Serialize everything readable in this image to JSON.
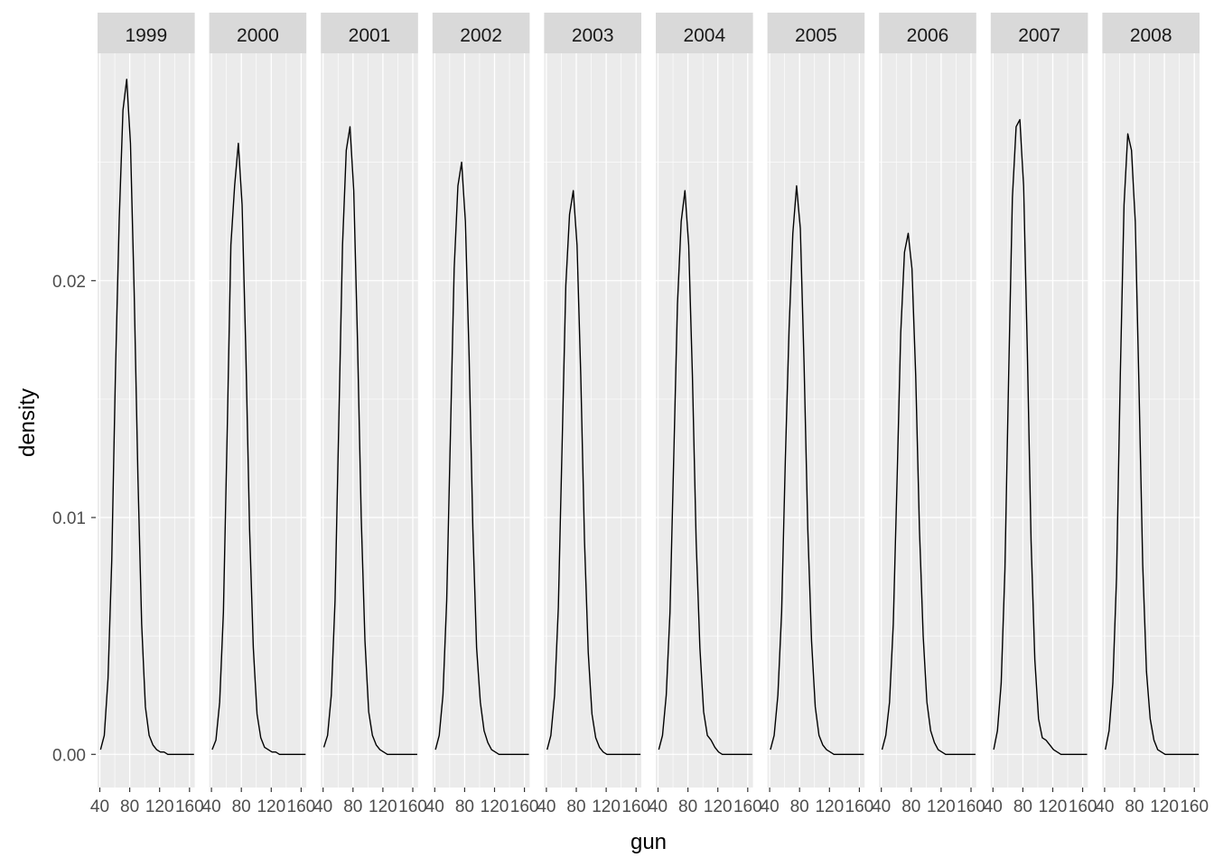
{
  "chart_data": {
    "type": "line",
    "subtype": "faceted-density",
    "xlabel": "gun",
    "ylabel": "density",
    "xlim": [
      37,
      167
    ],
    "ylim": [
      -0.0014,
      0.0296
    ],
    "x_ticks": [
      40,
      80,
      120,
      160
    ],
    "x_tick_labels": [
      "40",
      "80",
      "120",
      "160"
    ],
    "y_ticks": [
      0.0,
      0.01,
      0.02
    ],
    "y_tick_labels": [
      "0.00",
      "0.01",
      "0.02"
    ],
    "grid": true,
    "panel_background": "#ebebeb",
    "strip_background": "#d9d9d9",
    "grid_color": "#ffffff",
    "line_color": "#000000",
    "facets": [
      {
        "strip": "1999",
        "x": [
          41,
          46,
          51,
          56,
          61,
          66,
          71,
          76,
          81,
          86,
          91,
          96,
          101,
          106,
          111,
          116,
          121,
          126,
          131,
          136,
          141,
          146,
          151,
          156,
          161,
          166
        ],
        "y": [
          0.0002,
          0.0008,
          0.0032,
          0.0082,
          0.0162,
          0.0226,
          0.0272,
          0.0285,
          0.0258,
          0.0195,
          0.0117,
          0.0055,
          0.002,
          0.0008,
          0.0004,
          0.0002,
          0.0001,
          0.0001,
          0.0,
          0.0,
          0.0,
          0.0,
          0.0,
          0.0,
          0.0,
          0.0
        ]
      },
      {
        "strip": "2000",
        "x": [
          41,
          46,
          51,
          56,
          61,
          66,
          71,
          76,
          81,
          86,
          91,
          96,
          101,
          106,
          111,
          116,
          121,
          126,
          131,
          136,
          141,
          146,
          151,
          156,
          161,
          166
        ],
        "y": [
          0.0002,
          0.0006,
          0.0022,
          0.006,
          0.0135,
          0.0215,
          0.024,
          0.0258,
          0.0232,
          0.017,
          0.0095,
          0.0045,
          0.0017,
          0.0007,
          0.0003,
          0.0002,
          0.0001,
          0.0001,
          0.0,
          0.0,
          0.0,
          0.0,
          0.0,
          0.0,
          0.0,
          0.0
        ]
      },
      {
        "strip": "2001",
        "x": [
          41,
          46,
          51,
          56,
          61,
          66,
          71,
          76,
          81,
          86,
          91,
          96,
          101,
          106,
          111,
          116,
          121,
          126,
          131,
          136,
          141,
          146,
          151,
          156,
          161,
          166
        ],
        "y": [
          0.0003,
          0.0008,
          0.0025,
          0.0065,
          0.014,
          0.0215,
          0.0255,
          0.0265,
          0.0238,
          0.0175,
          0.01,
          0.0048,
          0.0018,
          0.0008,
          0.0004,
          0.0002,
          0.0001,
          0.0,
          0.0,
          0.0,
          0.0,
          0.0,
          0.0,
          0.0,
          0.0,
          0.0
        ]
      },
      {
        "strip": "2002",
        "x": [
          41,
          46,
          51,
          56,
          61,
          66,
          71,
          76,
          81,
          86,
          91,
          96,
          101,
          106,
          111,
          116,
          121,
          126,
          131,
          136,
          141,
          146,
          151,
          156,
          161,
          166
        ],
        "y": [
          0.0002,
          0.0008,
          0.0025,
          0.0065,
          0.0135,
          0.0205,
          0.024,
          0.025,
          0.0225,
          0.0168,
          0.0095,
          0.0045,
          0.0022,
          0.001,
          0.0005,
          0.0002,
          0.0001,
          0.0,
          0.0,
          0.0,
          0.0,
          0.0,
          0.0,
          0.0,
          0.0,
          0.0
        ]
      },
      {
        "strip": "2003",
        "x": [
          41,
          46,
          51,
          56,
          61,
          66,
          71,
          76,
          81,
          86,
          91,
          96,
          101,
          106,
          111,
          116,
          121,
          126,
          131,
          136,
          141,
          146,
          151,
          156,
          161,
          166
        ],
        "y": [
          0.0002,
          0.0008,
          0.0025,
          0.0062,
          0.013,
          0.0198,
          0.0228,
          0.0238,
          0.0215,
          0.016,
          0.009,
          0.0043,
          0.0017,
          0.0007,
          0.0003,
          0.0001,
          0.0,
          0.0,
          0.0,
          0.0,
          0.0,
          0.0,
          0.0,
          0.0,
          0.0,
          0.0
        ]
      },
      {
        "strip": "2004",
        "x": [
          41,
          46,
          51,
          56,
          61,
          66,
          71,
          76,
          81,
          86,
          91,
          96,
          101,
          106,
          111,
          116,
          121,
          126,
          131,
          136,
          141,
          146,
          151,
          156,
          161,
          166
        ],
        "y": [
          0.0002,
          0.0008,
          0.0025,
          0.006,
          0.0125,
          0.019,
          0.0225,
          0.0238,
          0.0215,
          0.016,
          0.009,
          0.0045,
          0.0018,
          0.0008,
          0.0006,
          0.0003,
          0.0001,
          0.0,
          0.0,
          0.0,
          0.0,
          0.0,
          0.0,
          0.0,
          0.0,
          0.0
        ]
      },
      {
        "strip": "2005",
        "x": [
          41,
          46,
          51,
          56,
          61,
          66,
          71,
          76,
          81,
          86,
          91,
          96,
          101,
          106,
          111,
          116,
          121,
          126,
          131,
          136,
          141,
          146,
          151,
          156,
          161,
          166
        ],
        "y": [
          0.0002,
          0.0008,
          0.0025,
          0.006,
          0.0125,
          0.018,
          0.022,
          0.024,
          0.0222,
          0.0165,
          0.0095,
          0.0048,
          0.002,
          0.0008,
          0.0004,
          0.0002,
          0.0001,
          0.0,
          0.0,
          0.0,
          0.0,
          0.0,
          0.0,
          0.0,
          0.0,
          0.0
        ]
      },
      {
        "strip": "2006",
        "x": [
          41,
          46,
          51,
          56,
          61,
          66,
          71,
          76,
          81,
          86,
          91,
          96,
          101,
          106,
          111,
          116,
          121,
          126,
          131,
          136,
          141,
          146,
          151,
          156,
          161,
          166
        ],
        "y": [
          0.0002,
          0.0008,
          0.0022,
          0.0055,
          0.0115,
          0.0178,
          0.0212,
          0.022,
          0.0205,
          0.016,
          0.0095,
          0.005,
          0.0022,
          0.001,
          0.0005,
          0.0002,
          0.0001,
          0.0,
          0.0,
          0.0,
          0.0,
          0.0,
          0.0,
          0.0,
          0.0,
          0.0
        ]
      },
      {
        "strip": "2007",
        "x": [
          41,
          46,
          51,
          56,
          61,
          66,
          71,
          76,
          81,
          86,
          91,
          96,
          101,
          106,
          111,
          116,
          121,
          126,
          131,
          136,
          141,
          146,
          151,
          156,
          161,
          166
        ],
        "y": [
          0.0002,
          0.001,
          0.003,
          0.0078,
          0.016,
          0.0235,
          0.0265,
          0.0268,
          0.024,
          0.017,
          0.009,
          0.004,
          0.0015,
          0.0007,
          0.0006,
          0.0004,
          0.0002,
          0.0001,
          0.0,
          0.0,
          0.0,
          0.0,
          0.0,
          0.0,
          0.0,
          0.0
        ]
      },
      {
        "strip": "2008",
        "x": [
          41,
          46,
          51,
          56,
          61,
          66,
          71,
          76,
          81,
          86,
          91,
          96,
          101,
          106,
          111,
          116,
          121,
          126,
          131,
          136,
          141,
          146,
          151,
          156,
          161,
          166
        ],
        "y": [
          0.0002,
          0.001,
          0.003,
          0.0075,
          0.016,
          0.0232,
          0.0262,
          0.0255,
          0.0225,
          0.0155,
          0.008,
          0.0035,
          0.0015,
          0.0006,
          0.0002,
          0.0001,
          0.0,
          0.0,
          0.0,
          0.0,
          0.0,
          0.0,
          0.0,
          0.0,
          0.0,
          0.0
        ]
      }
    ]
  }
}
